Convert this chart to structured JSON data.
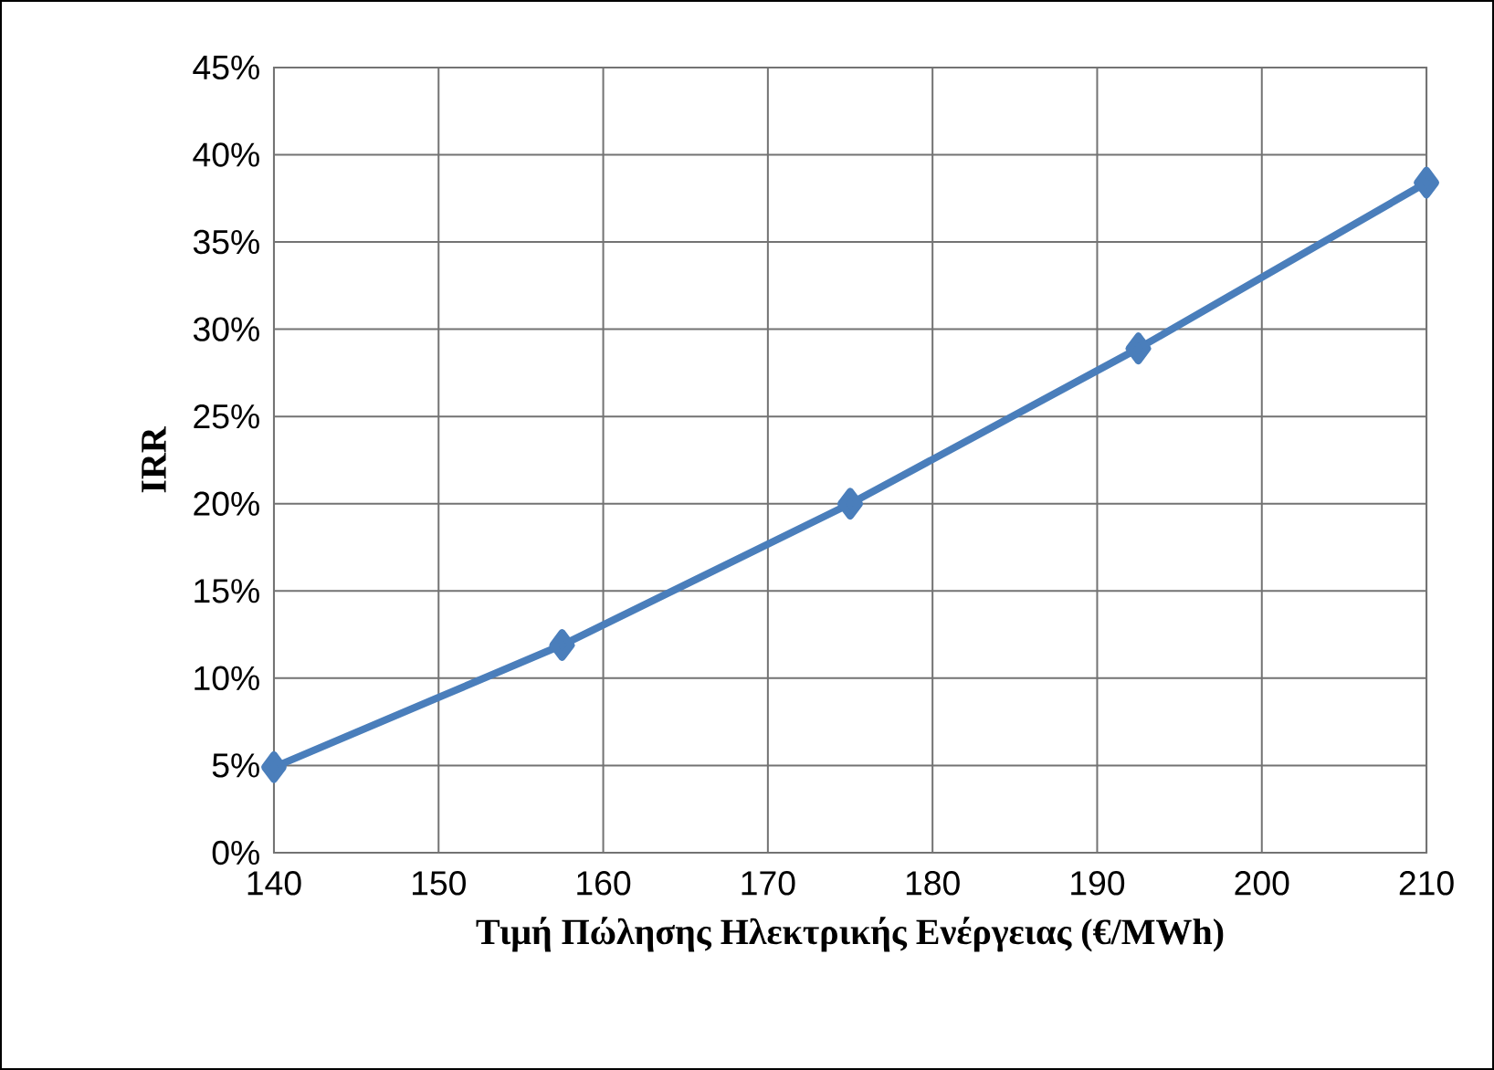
{
  "chart_data": {
    "type": "line",
    "xlabel": "Τιμή Πώλησης Ηλεκτρικής Ενέργειας (€/MWh)",
    "ylabel": "IRR",
    "x": [
      140,
      157.5,
      175,
      192.5,
      210
    ],
    "series": [
      {
        "color": "#4a7ebb",
        "values": [
          4.9,
          11.9,
          20.0,
          28.9,
          38.4
        ]
      }
    ],
    "xlim": [
      140,
      210
    ],
    "xticks": [
      140,
      150,
      160,
      170,
      180,
      190,
      200,
      210
    ],
    "ylim": [
      0,
      45
    ],
    "yticks": [
      {
        "value": 0,
        "label": "0%"
      },
      {
        "value": 5,
        "label": "5%"
      },
      {
        "value": 10,
        "label": "10%"
      },
      {
        "value": 15,
        "label": "15%"
      },
      {
        "value": 20,
        "label": "20%"
      },
      {
        "value": 25,
        "label": "25%"
      },
      {
        "value": 30,
        "label": "30%"
      },
      {
        "value": 35,
        "label": "35%"
      },
      {
        "value": 40,
        "label": "40%"
      },
      {
        "value": 45,
        "label": "45%"
      }
    ],
    "grid": true,
    "marker": "diamond",
    "line_style": "solid"
  }
}
